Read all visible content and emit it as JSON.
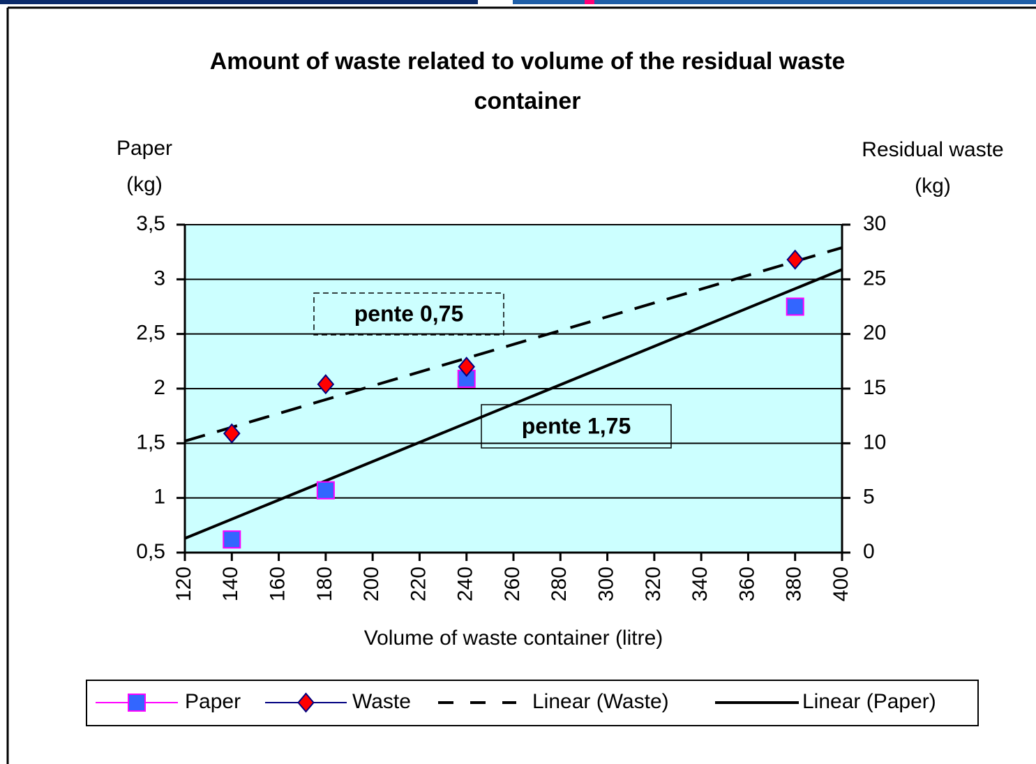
{
  "chart_data": {
    "type": "scatter",
    "title": [
      "Amount of waste related to volume of the residual waste",
      "container"
    ],
    "x_label": "Volume of waste container (litre)",
    "y_label": [
      "Paper",
      "(kg)"
    ],
    "y2_label": [
      "Residual waste",
      "(kg)"
    ],
    "xlim": [
      120,
      400
    ],
    "xticks": [
      120,
      140,
      160,
      180,
      200,
      220,
      240,
      260,
      280,
      300,
      320,
      340,
      360,
      380,
      400
    ],
    "ylim": [
      0.5,
      3.5
    ],
    "yticks": [
      {
        "value": 0.5,
        "label": "0,5"
      },
      1,
      {
        "value": 1.5,
        "label": "1,5"
      },
      2,
      {
        "value": 2.5,
        "label": "2,5"
      },
      3,
      {
        "value": 3.5,
        "label": "3,5"
      }
    ],
    "y2lim": [
      0,
      30
    ],
    "y2ticks": [
      0,
      5,
      10,
      15,
      20,
      25,
      30
    ],
    "grid": true,
    "background": "#ccffff",
    "series": [
      {
        "name": "Paper",
        "color": "#3366ff",
        "line_color": "#ff00ff",
        "marker": "square",
        "axis": "y",
        "x": [
          140,
          180,
          240,
          380
        ],
        "values": [
          0.62,
          1.07,
          2.09,
          2.75
        ]
      },
      {
        "name": "Waste",
        "color": "#ff0000",
        "line_color": "#000080",
        "marker": "diamond",
        "axis": "y2",
        "x": [
          140,
          180,
          240,
          380
        ],
        "values": [
          10.9,
          15.4,
          17.0,
          26.8
        ]
      },
      {
        "name": "Linear (Waste)",
        "color": "#000000",
        "dash": true,
        "axis": "y2",
        "x": [
          120,
          400
        ],
        "values": [
          10.2,
          27.9
        ]
      },
      {
        "name": "Linear (Paper)",
        "color": "#000000",
        "dash": false,
        "axis": "y",
        "x": [
          120,
          400
        ],
        "values": [
          0.63,
          3.09
        ]
      }
    ],
    "annotations": [
      {
        "text": "pente 0,75",
        "color": "#ff3300",
        "border": "dashed"
      },
      {
        "text": "pente 1,75",
        "color": "#3333cc",
        "border": "solid"
      }
    ]
  }
}
